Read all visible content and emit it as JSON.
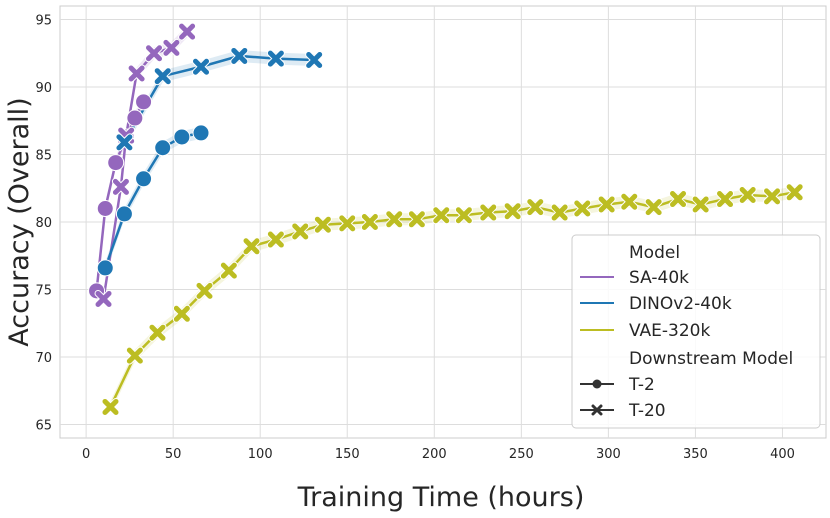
{
  "chart_data": {
    "type": "line",
    "xlabel": "Training Time (hours)",
    "ylabel": "Accuracy (Overall)",
    "xlim": [
      -15,
      425
    ],
    "ylim": [
      64,
      96
    ],
    "xticks": [
      0,
      50,
      100,
      150,
      200,
      250,
      300,
      350,
      400
    ],
    "yticks": [
      65,
      70,
      75,
      80,
      85,
      90,
      95
    ],
    "grid": true,
    "legend": {
      "position": "lower-right",
      "title": "Model",
      "subtitle": "Downstream Model",
      "marker_entries": [
        {
          "label": "T-2",
          "marker": "circle"
        },
        {
          "label": "T-20",
          "marker": "x"
        }
      ]
    },
    "series": [
      {
        "name": "SA-40k",
        "color": "#9467bd",
        "model": "T-2",
        "marker": "circle",
        "x": [
          6,
          11,
          17,
          23,
          28,
          33
        ],
        "y": [
          74.9,
          81.0,
          84.4,
          86.3,
          87.7,
          88.9
        ]
      },
      {
        "name": "SA-40k",
        "color": "#9467bd",
        "model": "T-20",
        "marker": "x",
        "x": [
          10,
          20,
          23,
          29,
          39,
          49,
          58
        ],
        "y": [
          74.3,
          82.6,
          86.4,
          91.0,
          92.5,
          92.9,
          94.1
        ]
      },
      {
        "name": "DINOv2-40k",
        "color": "#1f77b4",
        "model": "T-2",
        "marker": "circle",
        "x": [
          11,
          22,
          33,
          44,
          55,
          66
        ],
        "y": [
          76.6,
          80.6,
          83.2,
          85.5,
          86.3,
          86.6
        ]
      },
      {
        "name": "DINOv2-40k",
        "color": "#1f77b4",
        "model": "T-20",
        "marker": "x",
        "x": [
          22,
          44,
          66,
          88,
          109,
          131
        ],
        "y": [
          85.9,
          90.8,
          91.5,
          92.3,
          92.1,
          92.0
        ]
      },
      {
        "name": "VAE-320k",
        "color": "#bcbd22",
        "model": "T-20",
        "marker": "x",
        "x": [
          14,
          28,
          41,
          55,
          68,
          82,
          95,
          109,
          123,
          136,
          150,
          163,
          177,
          190,
          204,
          217,
          231,
          245,
          258,
          272,
          285,
          299,
          312,
          326,
          340,
          353,
          367,
          380,
          394,
          407
        ],
        "y": [
          66.3,
          70.1,
          71.8,
          73.2,
          74.9,
          76.4,
          78.2,
          78.7,
          79.3,
          79.8,
          79.9,
          80.0,
          80.2,
          80.2,
          80.5,
          80.5,
          80.7,
          80.8,
          81.1,
          80.7,
          81.0,
          81.3,
          81.5,
          81.1,
          81.7,
          81.3,
          81.7,
          82.0,
          81.9,
          82.2
        ]
      }
    ]
  }
}
